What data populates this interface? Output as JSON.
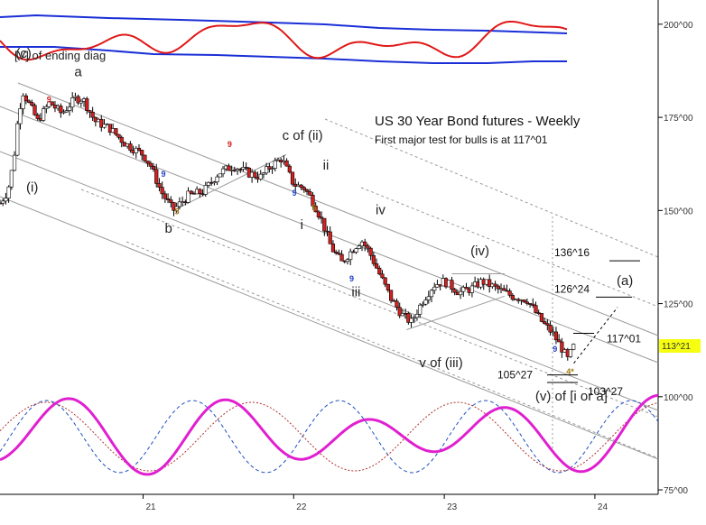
{
  "colors": {
    "up_candle": "#ffffff",
    "down_candle": "#d42020",
    "channel": "#9a9a9a",
    "band": "#1a2fd6",
    "oscillator": "#e01818",
    "cycle_main": "#e020d0",
    "cycle_blue": "#2050c0",
    "cycle_red": "#b03030",
    "price_tag_bg": "#f7ff10",
    "count_red": "#d42020",
    "count_blue": "#2040c8",
    "count_gold": "#a07810"
  },
  "chart_data": {
    "type": "candlestick",
    "title": "US 30 Year Bond futures - Weekly",
    "subtitle": "First major test for bulls is at 117^01",
    "y_axis": {
      "ticks": [
        "200^00",
        "175^00",
        "150^00",
        "125^00",
        "100^00",
        "75^00"
      ],
      "tick_values": [
        200,
        175,
        150,
        125,
        100,
        75
      ],
      "range": [
        73.8,
        206.5
      ]
    },
    "x_axis": {
      "ticks": [
        "21",
        "22",
        "23",
        "24"
      ],
      "tick_values": [
        2021,
        2022,
        2023,
        2024
      ],
      "range": [
        2020.05,
        2024.42
      ]
    },
    "last_price": "113^21",
    "price_path": [
      [
        2020.05,
        152
      ],
      [
        2020.1,
        155
      ],
      [
        2020.14,
        163
      ],
      [
        2020.17,
        175
      ],
      [
        2020.2,
        182
      ],
      [
        2020.25,
        178
      ],
      [
        2020.3,
        174
      ],
      [
        2020.38,
        179
      ],
      [
        2020.46,
        176
      ],
      [
        2020.55,
        180
      ],
      [
        2020.6,
        180
      ],
      [
        2020.68,
        174
      ],
      [
        2020.78,
        172
      ],
      [
        2020.88,
        168
      ],
      [
        2021.0,
        165
      ],
      [
        2021.05,
        162
      ],
      [
        2021.12,
        155
      ],
      [
        2021.2,
        150
      ],
      [
        2021.3,
        154
      ],
      [
        2021.4,
        155
      ],
      [
        2021.5,
        160
      ],
      [
        2021.6,
        162
      ],
      [
        2021.7,
        160
      ],
      [
        2021.78,
        159
      ],
      [
        2021.85,
        162
      ],
      [
        2021.92,
        164
      ],
      [
        2022.0,
        157
      ],
      [
        2022.07,
        156
      ],
      [
        2022.12,
        153
      ],
      [
        2022.18,
        148
      ],
      [
        2022.25,
        140
      ],
      [
        2022.32,
        136
      ],
      [
        2022.4,
        140
      ],
      [
        2022.45,
        142
      ],
      [
        2022.5,
        139
      ],
      [
        2022.58,
        132
      ],
      [
        2022.65,
        126
      ],
      [
        2022.72,
        122
      ],
      [
        2022.78,
        120
      ],
      [
        2022.86,
        126
      ],
      [
        2022.93,
        130
      ],
      [
        2023.0,
        131
      ],
      [
        2023.1,
        128
      ],
      [
        2023.18,
        129
      ],
      [
        2023.25,
        131
      ],
      [
        2023.35,
        129
      ],
      [
        2023.45,
        127
      ],
      [
        2023.55,
        126
      ],
      [
        2023.65,
        120
      ],
      [
        2023.72,
        117
      ],
      [
        2023.78,
        113
      ],
      [
        2023.82,
        110
      ],
      [
        2023.86,
        113.6
      ]
    ],
    "levels": [
      {
        "label": "136^16",
        "value": 136.5
      },
      {
        "label": "126^24",
        "value": 126.75
      },
      {
        "label": "117^01",
        "value": 117.03
      },
      {
        "label": "105^27",
        "value": 105.84
      },
      {
        "label": "103^27",
        "value": 103.84
      }
    ],
    "wave_labels": [
      {
        "text": "(c)",
        "x": 2020.19,
        "y": 191
      },
      {
        "text": "a",
        "x": 2020.58,
        "y": 186
      },
      {
        "text": "(i)",
        "x": 2020.26,
        "y": 155
      },
      {
        "text": "b",
        "x": 2021.18,
        "y": 144
      },
      {
        "text": "c of (ii)",
        "x": 2021.96,
        "y": 169
      },
      {
        "text": "ii",
        "x": 2022.23,
        "y": 161
      },
      {
        "text": "i",
        "x": 2022.08,
        "y": 145
      },
      {
        "text": "iii",
        "x": 2022.42,
        "y": 127
      },
      {
        "text": "iv",
        "x": 2022.58,
        "y": 149
      },
      {
        "text": "v of (iii)",
        "x": 2022.87,
        "y": 108
      },
      {
        "text": "(iv)",
        "x": 2023.21,
        "y": 138
      },
      {
        "text": "(v) of [i or a]",
        "x": 2023.64,
        "y": 99
      },
      {
        "text": "(a)",
        "x": 2024.18,
        "y": 130
      }
    ],
    "count_labels": [
      {
        "text": "9",
        "x": 2020.36,
        "y": 179,
        "color": "red"
      },
      {
        "text": "9",
        "x": 2021.12,
        "y": 159,
        "color": "blue"
      },
      {
        "text": "5",
        "x": 2021.21,
        "y": 149,
        "color": "gold"
      },
      {
        "text": "9",
        "x": 2021.56,
        "y": 167,
        "color": "red"
      },
      {
        "text": "9",
        "x": 2021.99,
        "y": 154,
        "color": "blue"
      },
      {
        "text": "5",
        "x": 2022.12,
        "y": 150,
        "color": "gold"
      },
      {
        "text": "9",
        "x": 2022.37,
        "y": 131,
        "color": "blue"
      },
      {
        "text": "9",
        "x": 2023.72,
        "y": 112,
        "color": "blue"
      },
      {
        "text": "4*",
        "x": 2023.81,
        "y": 106,
        "color": "gold"
      }
    ],
    "band_note": "[V] of ending diag"
  }
}
